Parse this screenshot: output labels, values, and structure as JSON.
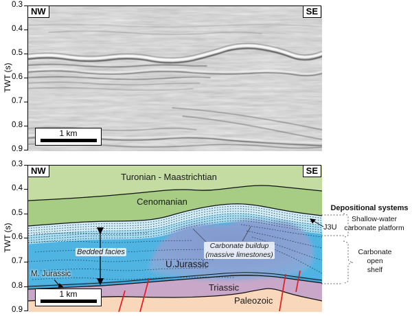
{
  "axis": {
    "label": "TWT (s)",
    "ticks": [
      "0.3",
      "0.4",
      "0.5",
      "0.6",
      "0.7",
      "0.8",
      "0.9"
    ]
  },
  "corners": {
    "left": "NW",
    "right": "SE"
  },
  "scalebar_label": "1 km",
  "interpretation": {
    "units": {
      "turonian": "Turonian - Maastrichtian",
      "cenomanian": "Cenomanian",
      "u_jurassic": "U.Jurassic",
      "m_jurassic": "M. Jurassic",
      "triassic": "Triassic",
      "paleozoic": "Paleozoic"
    },
    "annotations": {
      "bedded_facies": "Bedded facies",
      "carbonate_buildup": "Carbonate buildup\n(massive limestones)",
      "j3u": "J3U"
    }
  },
  "legend": {
    "title": "Depositional systems",
    "items": [
      {
        "label": "Shallow-water\ncarbonate platform"
      },
      {
        "label": "Carbonate\nopen\nshelf"
      }
    ]
  },
  "colors": {
    "turonian_green": "#c4dca2",
    "cenomanian_green": "#a6cd83",
    "shelf_band_light": "#d2ecf6",
    "shelf_band_mid": "#a9ddf1",
    "shelf_blue": "#4fb4e2",
    "buildup_purple": "#8e9cd0",
    "triassic_mauve": "#c9a7c8",
    "paleozoic_peach": "#f8d7bb",
    "fault_red": "#e8191d"
  }
}
